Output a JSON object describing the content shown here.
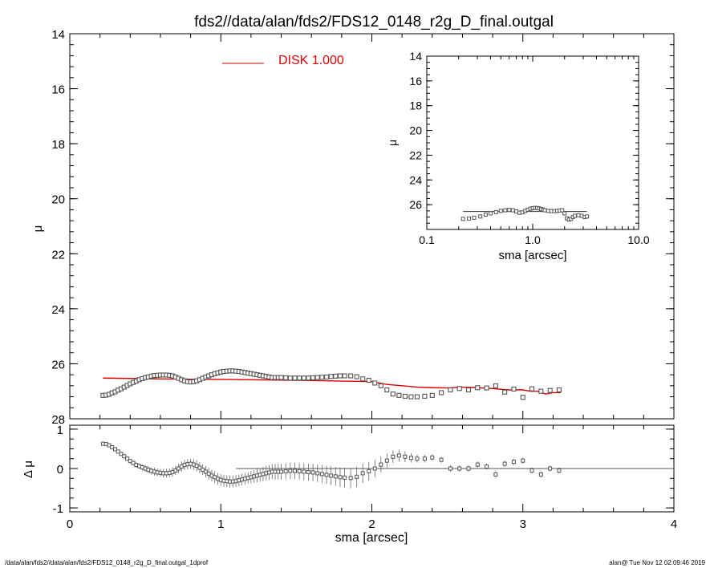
{
  "title": "fds2//data/alan/fds2/FDS12_0148_r2g_D_final.outgal",
  "footer": {
    "left": "/data/alan/fds2//data/alan/fds2/FDS12_0148_r2g_D_final.outgal_1dprof",
    "right": "alan@  Tue Nov 12 02:09:46 2019"
  },
  "colors": {
    "model": "#dd0000",
    "data": "#555555",
    "axis": "#000000"
  },
  "legend": {
    "label": "DISK  1.000",
    "color": "#dd0000"
  },
  "chart_data": [
    {
      "id": "main",
      "type": "scatter",
      "ylabel": "μ",
      "xlim": [
        0,
        4
      ],
      "ylim": [
        28,
        14
      ],
      "yticks": [
        "14",
        "16",
        "18",
        "20",
        "22",
        "24",
        "26",
        "28"
      ],
      "x": [
        0.22,
        0.24,
        0.26,
        0.28,
        0.3,
        0.32,
        0.34,
        0.36,
        0.38,
        0.4,
        0.42,
        0.44,
        0.46,
        0.48,
        0.5,
        0.52,
        0.54,
        0.56,
        0.58,
        0.6,
        0.62,
        0.64,
        0.66,
        0.68,
        0.7,
        0.72,
        0.74,
        0.76,
        0.78,
        0.8,
        0.82,
        0.84,
        0.86,
        0.88,
        0.9,
        0.92,
        0.94,
        0.96,
        0.98,
        1.0,
        1.02,
        1.04,
        1.06,
        1.08,
        1.1,
        1.12,
        1.14,
        1.16,
        1.18,
        1.2,
        1.22,
        1.24,
        1.26,
        1.28,
        1.3,
        1.32,
        1.34,
        1.36,
        1.38,
        1.4,
        1.43,
        1.46,
        1.49,
        1.52,
        1.55,
        1.58,
        1.61,
        1.64,
        1.67,
        1.7,
        1.73,
        1.76,
        1.79,
        1.82,
        1.86,
        1.9,
        1.94,
        1.98,
        2.02,
        2.06,
        2.1,
        2.14,
        2.18,
        2.22,
        2.26,
        2.3,
        2.35,
        2.4,
        2.46,
        2.52,
        2.58,
        2.64,
        2.7,
        2.76,
        2.82,
        2.88,
        2.94,
        3.0,
        3.06,
        3.12,
        3.18,
        3.24
      ],
      "y": [
        27.15,
        27.14,
        27.11,
        27.06,
        27.02,
        26.96,
        26.91,
        26.85,
        26.79,
        26.73,
        26.68,
        26.63,
        26.58,
        26.54,
        26.5,
        26.48,
        26.45,
        26.43,
        26.42,
        26.41,
        26.41,
        26.41,
        26.42,
        26.44,
        26.48,
        26.53,
        26.58,
        26.62,
        26.65,
        26.66,
        26.65,
        26.62,
        26.58,
        26.53,
        26.48,
        26.44,
        26.4,
        26.36,
        26.33,
        26.3,
        26.28,
        26.27,
        26.26,
        26.26,
        26.27,
        26.28,
        26.3,
        26.32,
        26.34,
        26.36,
        26.38,
        26.4,
        26.42,
        26.44,
        26.46,
        26.48,
        26.5,
        26.5,
        26.5,
        26.5,
        26.51,
        26.52,
        26.52,
        26.52,
        26.52,
        26.52,
        26.51,
        26.5,
        26.49,
        26.48,
        26.46,
        26.45,
        26.44,
        26.44,
        26.44,
        26.47,
        26.55,
        26.6,
        26.7,
        26.8,
        26.95,
        27.1,
        27.15,
        27.18,
        27.2,
        27.2,
        27.18,
        27.15,
        27.05,
        26.95,
        26.9,
        26.95,
        26.87,
        26.88,
        26.8,
        27.03,
        26.92,
        27.22,
        26.91,
        27.0,
        26.97,
        26.95
      ],
      "model_x": [
        0.22,
        0.6,
        1.0,
        1.5,
        2.0,
        2.1,
        2.2,
        2.3,
        2.4,
        2.5,
        2.6,
        2.7,
        2.8,
        2.9,
        3.0,
        3.05,
        3.1,
        3.15,
        3.2,
        3.25
      ],
      "model_y": [
        26.52,
        26.55,
        26.57,
        26.6,
        26.65,
        26.75,
        26.8,
        26.85,
        26.87,
        26.88,
        26.85,
        26.87,
        26.9,
        26.95,
        26.95,
        27.0,
        27.0,
        27.1,
        27.05,
        27.05
      ]
    },
    {
      "id": "inset",
      "type": "scatter",
      "xlabel": "sma [arcsec]",
      "ylabel": "μ",
      "xscale": "log",
      "xlim": [
        0.1,
        10.0
      ],
      "ylim": [
        28,
        14
      ],
      "xticks": [
        "0.1",
        "1.0",
        "10.0"
      ],
      "yticks": [
        "14",
        "16",
        "18",
        "20",
        "22",
        "24",
        "26"
      ],
      "x": [
        0.22,
        0.25,
        0.28,
        0.32,
        0.36,
        0.4,
        0.45,
        0.5,
        0.55,
        0.6,
        0.65,
        0.7,
        0.75,
        0.8,
        0.85,
        0.9,
        0.95,
        1.0,
        1.05,
        1.1,
        1.15,
        1.2,
        1.25,
        1.3,
        1.4,
        1.5,
        1.6,
        1.7,
        1.8,
        1.9,
        2.0,
        2.1,
        2.2,
        2.3,
        2.4,
        2.5,
        2.7,
        2.9,
        3.1,
        3.25
      ],
      "y": [
        27.15,
        27.12,
        27.05,
        26.95,
        26.8,
        26.7,
        26.6,
        26.5,
        26.45,
        26.42,
        26.45,
        26.55,
        26.65,
        26.62,
        26.5,
        26.4,
        26.33,
        26.28,
        26.26,
        26.27,
        26.3,
        26.35,
        26.4,
        26.45,
        26.5,
        26.52,
        26.52,
        26.5,
        26.47,
        26.45,
        26.7,
        27.1,
        27.2,
        27.15,
        27.0,
        26.9,
        26.85,
        26.9,
        27.0,
        26.95
      ],
      "model_x": [
        0.22,
        3.25
      ],
      "model_y": [
        26.55,
        26.55
      ]
    },
    {
      "id": "residual",
      "type": "scatter",
      "xlabel": "sma [arcsec]",
      "ylabel": "Δ μ",
      "xlim": [
        0,
        4
      ],
      "ylim": [
        -1.1,
        1.1
      ],
      "xticks": [
        "0",
        "1",
        "2",
        "3",
        "4"
      ],
      "yticks": [
        "1",
        "0",
        "-1"
      ],
      "x": [
        0.22,
        0.24,
        0.26,
        0.28,
        0.3,
        0.32,
        0.34,
        0.36,
        0.38,
        0.4,
        0.42,
        0.44,
        0.46,
        0.48,
        0.5,
        0.52,
        0.54,
        0.56,
        0.58,
        0.6,
        0.62,
        0.64,
        0.66,
        0.68,
        0.7,
        0.72,
        0.74,
        0.76,
        0.78,
        0.8,
        0.82,
        0.84,
        0.86,
        0.88,
        0.9,
        0.92,
        0.94,
        0.96,
        0.98,
        1.0,
        1.02,
        1.04,
        1.06,
        1.08,
        1.1,
        1.12,
        1.14,
        1.16,
        1.18,
        1.2,
        1.22,
        1.24,
        1.26,
        1.28,
        1.3,
        1.32,
        1.34,
        1.36,
        1.38,
        1.4,
        1.43,
        1.46,
        1.49,
        1.52,
        1.55,
        1.58,
        1.61,
        1.64,
        1.67,
        1.7,
        1.73,
        1.76,
        1.79,
        1.82,
        1.86,
        1.9,
        1.94,
        1.98,
        2.02,
        2.06,
        2.1,
        2.14,
        2.18,
        2.22,
        2.26,
        2.3,
        2.35,
        2.4,
        2.46,
        2.52,
        2.58,
        2.64,
        2.7,
        2.76,
        2.82,
        2.88,
        2.94,
        3.0,
        3.06,
        3.12,
        3.18,
        3.24
      ],
      "y": [
        0.63,
        0.62,
        0.59,
        0.54,
        0.49,
        0.43,
        0.37,
        0.31,
        0.25,
        0.19,
        0.14,
        0.09,
        0.06,
        0.03,
        0.0,
        -0.03,
        -0.06,
        -0.08,
        -0.1,
        -0.11,
        -0.12,
        -0.12,
        -0.11,
        -0.09,
        -0.05,
        0.0,
        0.05,
        0.09,
        0.11,
        0.12,
        0.1,
        0.07,
        0.02,
        -0.03,
        -0.08,
        -0.13,
        -0.18,
        -0.22,
        -0.26,
        -0.29,
        -0.31,
        -0.32,
        -0.33,
        -0.33,
        -0.32,
        -0.3,
        -0.28,
        -0.26,
        -0.24,
        -0.22,
        -0.2,
        -0.18,
        -0.16,
        -0.14,
        -0.12,
        -0.1,
        -0.08,
        -0.08,
        -0.08,
        -0.08,
        -0.07,
        -0.06,
        -0.06,
        -0.07,
        -0.08,
        -0.09,
        -0.1,
        -0.12,
        -0.14,
        -0.16,
        -0.18,
        -0.2,
        -0.22,
        -0.23,
        -0.24,
        -0.21,
        -0.12,
        -0.07,
        0.0,
        0.1,
        0.2,
        0.3,
        0.33,
        0.3,
        0.27,
        0.25,
        0.25,
        0.28,
        0.22,
        0.0,
        0.0,
        0.0,
        0.1,
        0.05,
        -0.15,
        0.12,
        0.17,
        0.2,
        -0.05,
        -0.15,
        0.0,
        -0.05
      ],
      "err": [
        0.02,
        0.02,
        0.02,
        0.03,
        0.03,
        0.04,
        0.04,
        0.05,
        0.05,
        0.06,
        0.06,
        0.07,
        0.07,
        0.08,
        0.08,
        0.09,
        0.09,
        0.1,
        0.1,
        0.1,
        0.11,
        0.11,
        0.11,
        0.12,
        0.12,
        0.12,
        0.13,
        0.13,
        0.13,
        0.13,
        0.14,
        0.14,
        0.14,
        0.14,
        0.15,
        0.15,
        0.15,
        0.15,
        0.15,
        0.15,
        0.15,
        0.15,
        0.15,
        0.15,
        0.15,
        0.15,
        0.15,
        0.15,
        0.15,
        0.16,
        0.16,
        0.17,
        0.17,
        0.18,
        0.18,
        0.19,
        0.19,
        0.2,
        0.2,
        0.2,
        0.2,
        0.21,
        0.21,
        0.21,
        0.22,
        0.22,
        0.22,
        0.22,
        0.23,
        0.23,
        0.24,
        0.24,
        0.25,
        0.25,
        0.26,
        0.26,
        0.25,
        0.24,
        0.22,
        0.2,
        0.18,
        0.16,
        0.15,
        0.14,
        0.12,
        0.1,
        0.1,
        0.08,
        0.08,
        0.08,
        0.08,
        0.08,
        0.08,
        0.08,
        0.08,
        0.08,
        0.08,
        0.08,
        0.08,
        0.08,
        0.08,
        0.08
      ],
      "zero_line_x": [
        1.1,
        4.0
      ]
    }
  ]
}
